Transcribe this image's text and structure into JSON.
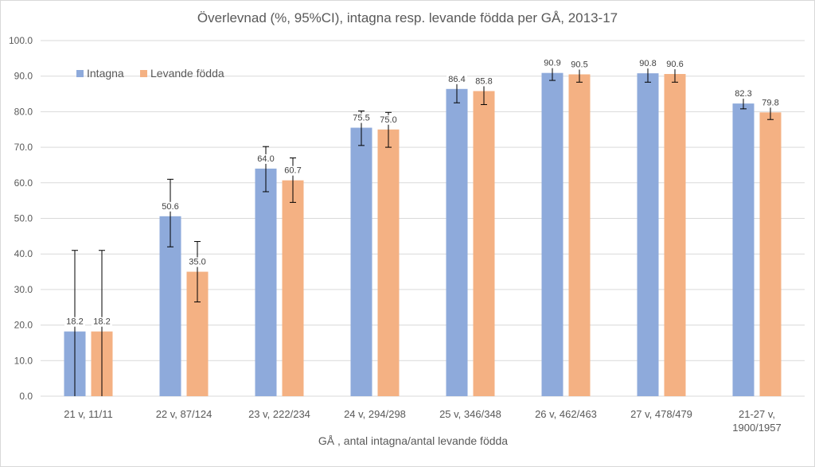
{
  "chart_data": {
    "type": "bar",
    "title": "Överlevnad (%, 95%CI), intagna resp. levande födda per GÅ, 2013-17",
    "xlabel": "GÅ , antal intagna/antal levande födda",
    "ylabel": "",
    "ylim": [
      0,
      100
    ],
    "yticks": [
      "0.0",
      "10.0",
      "20.0",
      "30.0",
      "40.0",
      "50.0",
      "60.0",
      "70.0",
      "80.0",
      "90.0",
      "100.0"
    ],
    "grid": true,
    "legend_position": "top-left",
    "categories": [
      [
        "21 v, 11/11"
      ],
      [
        "22 v, 87/124"
      ],
      [
        "23 v, 222/234"
      ],
      [
        "24 v, 294/298"
      ],
      [
        "25 v, 346/348"
      ],
      [
        "26 v, 462/463"
      ],
      [
        "27 v, 478/479"
      ],
      [
        "21-27 v,",
        "1900/1957"
      ]
    ],
    "series": [
      {
        "name": "Intagna",
        "color": "#8eaadb",
        "values": [
          18.2,
          50.6,
          64.0,
          75.5,
          86.4,
          90.9,
          90.8,
          82.3
        ],
        "labels": [
          "18.2",
          "50.6",
          "64.0",
          "75.5",
          "86.4",
          "90.9",
          "90.8",
          "82.3"
        ],
        "ci_low": [
          0,
          42,
          57.5,
          70.5,
          82.5,
          88.8,
          88.3,
          80.8
        ],
        "ci_high": [
          41,
          61,
          70.2,
          80.2,
          89.5,
          92.8,
          92.8,
          84
        ]
      },
      {
        "name": "Levande födda",
        "color": "#f4b183",
        "values": [
          18.2,
          35.0,
          60.7,
          75.0,
          85.8,
          90.5,
          90.6,
          79.8
        ],
        "labels": [
          "18.2",
          "35.0",
          "60.7",
          "75.0",
          "85.8",
          "90.5",
          "90.6",
          "79.8"
        ],
        "ci_low": [
          0,
          26.5,
          54.5,
          70,
          82,
          88.3,
          88.3,
          77.8
        ],
        "ci_high": [
          41,
          43.5,
          67,
          79.8,
          89.2,
          92.5,
          92.5,
          81.8
        ]
      }
    ]
  }
}
